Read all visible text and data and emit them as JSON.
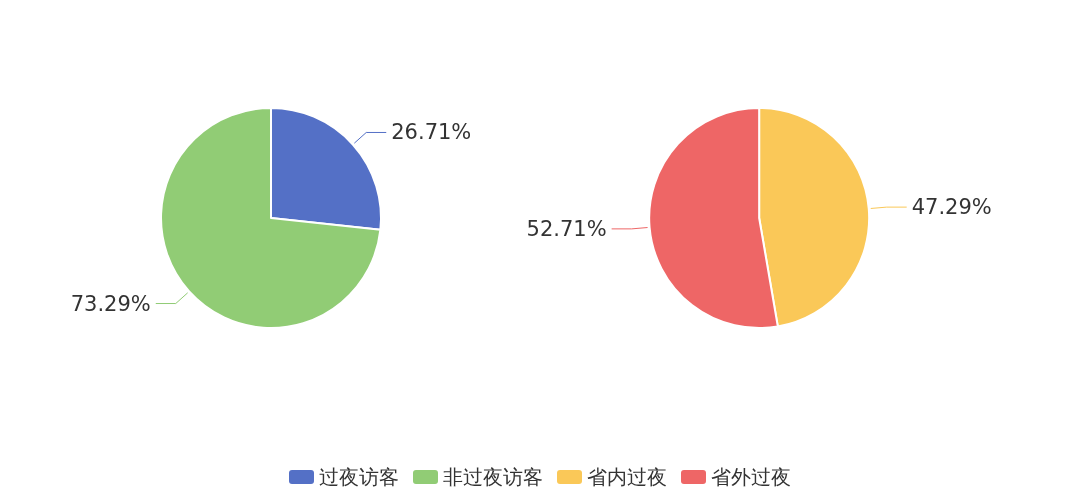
{
  "chart_data": [
    {
      "type": "pie",
      "categories": [
        "过夜访客",
        "非过夜访客"
      ],
      "values": [
        26.71,
        73.29
      ],
      "colors": [
        "#5470c6",
        "#91cc75"
      ],
      "value_labels": [
        "26.71%",
        "73.29%"
      ],
      "legend": "bottom"
    },
    {
      "type": "pie",
      "categories": [
        "省内过夜",
        "省外过夜"
      ],
      "values": [
        47.29,
        52.71
      ],
      "colors": [
        "#fac858",
        "#ee6666"
      ],
      "value_labels": [
        "47.29%",
        "52.71%"
      ],
      "legend": "bottom"
    }
  ]
}
